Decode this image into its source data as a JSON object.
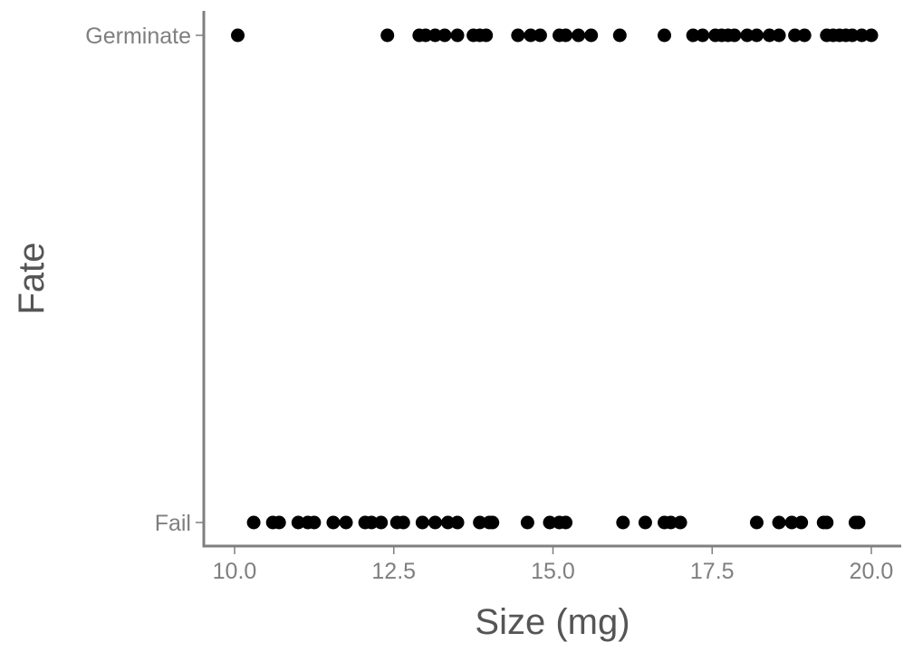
{
  "chart_data": {
    "type": "scatter",
    "title": "",
    "xlabel": "Size (mg)",
    "ylabel": "Fate",
    "xlim": [
      9.6,
      20.95
    ],
    "x_ticks": [
      10.0,
      12.5,
      15.0,
      17.5,
      20.0
    ],
    "x_tick_labels": [
      "10.0",
      "12.5",
      "15.0",
      "17.5",
      "20.0"
    ],
    "y_categories": [
      "Fail",
      "Germinate"
    ],
    "grid": false,
    "legend": "none",
    "point_color": "#000000",
    "series": [
      {
        "category": "Germinate",
        "x": [
          10.05,
          12.4,
          12.9,
          13.0,
          13.15,
          13.3,
          13.5,
          13.75,
          13.85,
          13.95,
          14.45,
          14.65,
          14.8,
          15.1,
          15.2,
          15.4,
          15.6,
          16.05,
          16.75,
          17.2,
          17.35,
          17.55,
          17.65,
          17.75,
          17.85,
          18.05,
          18.2,
          18.4,
          18.55,
          18.8,
          18.95,
          19.3,
          19.4,
          19.5,
          19.6,
          19.7,
          19.85,
          20.0
        ]
      },
      {
        "category": "Fail",
        "x": [
          10.3,
          10.6,
          10.7,
          11.0,
          11.15,
          11.25,
          11.55,
          11.75,
          12.05,
          12.15,
          12.3,
          12.55,
          12.65,
          12.95,
          13.15,
          13.35,
          13.5,
          13.85,
          14.0,
          14.05,
          14.6,
          14.95,
          15.1,
          15.2,
          16.1,
          16.45,
          16.75,
          16.85,
          17.0,
          18.2,
          18.55,
          18.75,
          18.9,
          19.25,
          19.3,
          19.75,
          19.8
        ]
      }
    ]
  }
}
